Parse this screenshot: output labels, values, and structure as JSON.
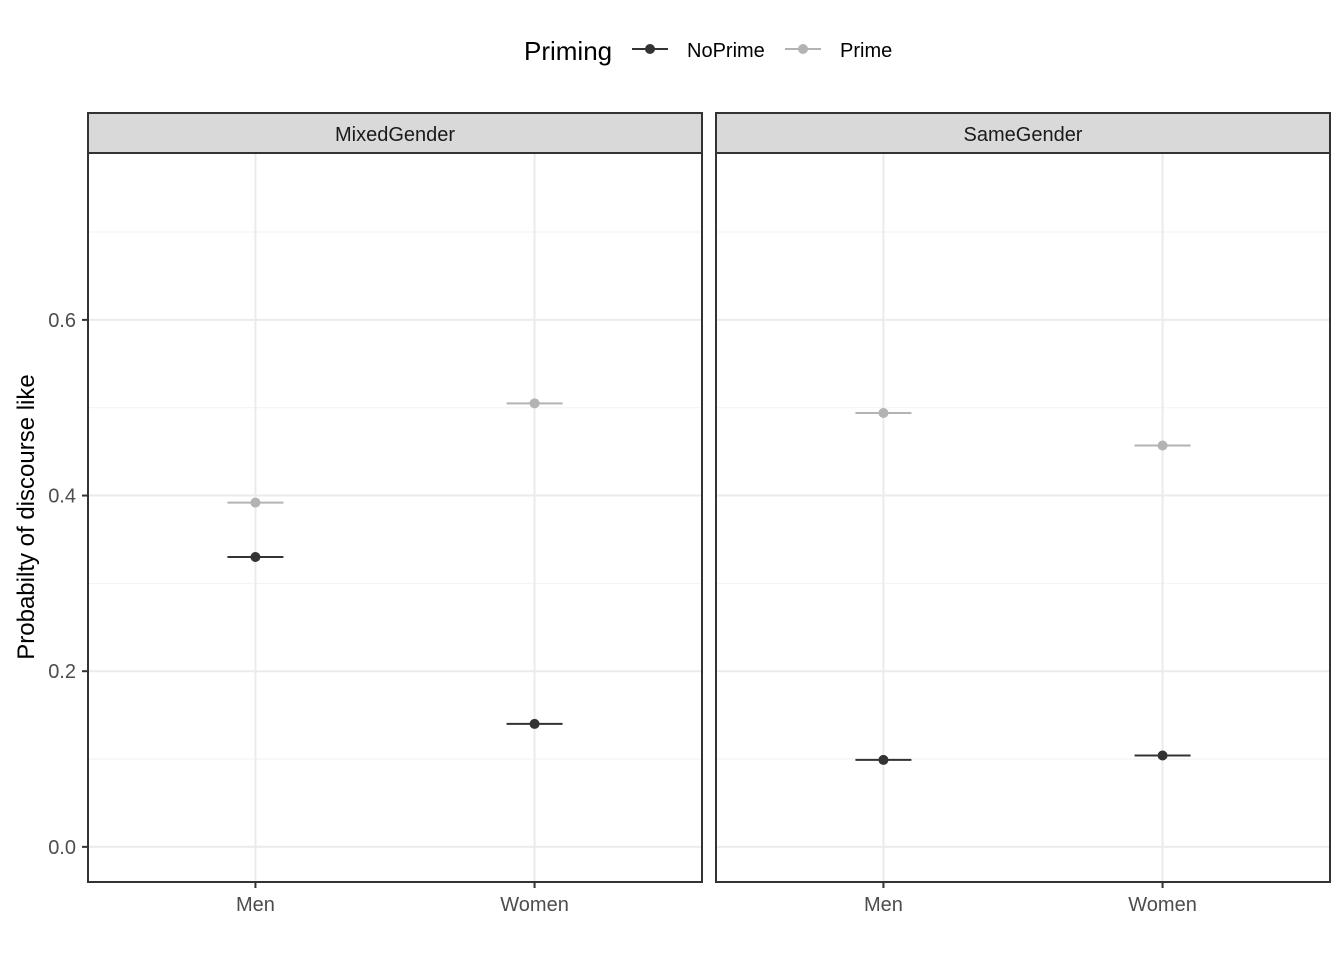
{
  "chart_data": {
    "type": "scatter",
    "subtype": "faceted point with errorbars",
    "ylabel": "Probabilty of discourse like",
    "xlabel": "",
    "ylim": [
      -0.04,
      0.79
    ],
    "yticks": [
      0.0,
      0.2,
      0.4,
      0.6
    ],
    "ytick_labels": [
      "0.0",
      "0.2",
      "0.4",
      "0.6"
    ],
    "categories": [
      "Men",
      "Women"
    ],
    "grid": true,
    "legend": {
      "title": "Priming",
      "position": "top",
      "entries": [
        {
          "name": "NoPrime",
          "color": "#333333"
        },
        {
          "name": "Prime",
          "color": "#b3b3b3"
        }
      ]
    },
    "facets": [
      {
        "title": "MixedGender",
        "series": [
          {
            "name": "NoPrime",
            "values": [
              0.33,
              0.14
            ]
          },
          {
            "name": "Prime",
            "values": [
              0.392,
              0.505
            ]
          }
        ]
      },
      {
        "title": "SameGender",
        "series": [
          {
            "name": "NoPrime",
            "values": [
              0.099,
              0.104
            ]
          },
          {
            "name": "Prime",
            "values": [
              0.494,
              0.457
            ]
          }
        ]
      }
    ]
  },
  "colors": {
    "strip_fill": "#d9d9d9",
    "panel_border": "#333333",
    "grid_major": "#ebebeb",
    "grid_minor": "#f2f2f2",
    "axis_text": "#4d4d4d"
  }
}
